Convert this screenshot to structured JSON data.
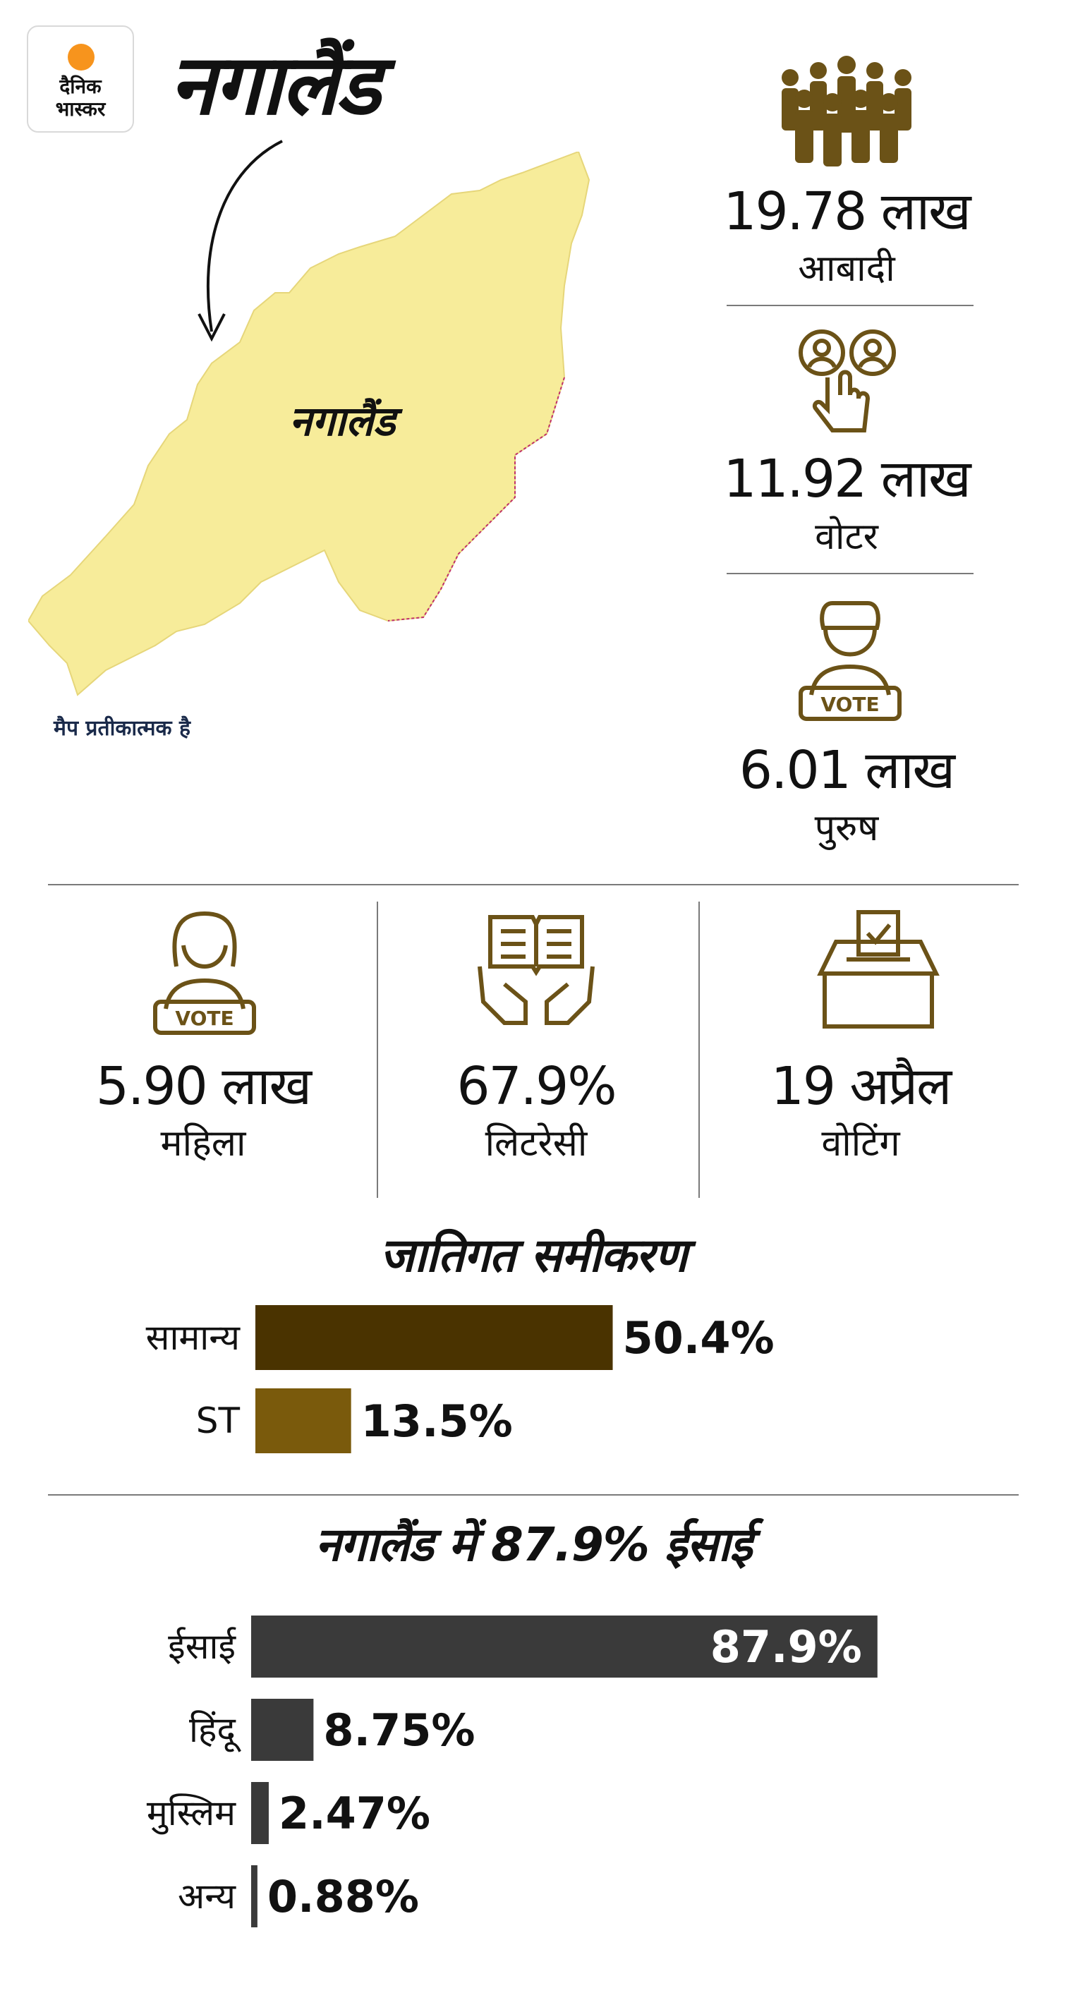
{
  "logo": {
    "line1": "दैनिक",
    "line2": "भास्कर"
  },
  "title": "नगालैंड",
  "map": {
    "label": "नगालैंड",
    "note": "मैप प्रतीकात्मक है"
  },
  "stats_right": [
    {
      "value": "19.78 लाख",
      "label": "आबादी",
      "icon": "crowd-icon"
    },
    {
      "value": "11.92 लाख",
      "label": "वोटर",
      "icon": "voter-touch-icon"
    },
    {
      "value": "6.01 लाख",
      "label": "पुरुष",
      "icon": "male-voter-icon"
    }
  ],
  "stats_row": [
    {
      "value": "5.90 लाख",
      "label": "महिला",
      "icon": "female-voter-icon"
    },
    {
      "value": "67.9%",
      "label": "लिटरेसी",
      "icon": "book-hands-icon"
    },
    {
      "value": "19 अप्रैल",
      "label": "वोटिंग",
      "icon": "ballot-box-icon"
    }
  ],
  "colors": {
    "accent": "#6b5217",
    "caste_dark": "#4a3300",
    "caste_light": "#7a5a0c",
    "religion": "#3a3a3a",
    "map_fill": "#f7ec9a"
  },
  "chart_data": [
    {
      "type": "bar",
      "orientation": "horizontal",
      "title": "जातिगत समीकरण",
      "categories": [
        "सामान्य",
        "ST"
      ],
      "values": [
        50.4,
        13.5
      ],
      "labels": [
        "50.4%",
        "13.5%"
      ]
    },
    {
      "type": "bar",
      "orientation": "horizontal",
      "title": "नगालैंड में  87.9% ईसाई",
      "categories": [
        "ईसाई",
        "हिंदू",
        "मुस्लिम",
        "अन्य"
      ],
      "values": [
        87.9,
        8.75,
        2.47,
        0.88
      ],
      "labels": [
        "87.9%",
        "8.75%",
        "2.47%",
        "0.88%"
      ]
    }
  ]
}
